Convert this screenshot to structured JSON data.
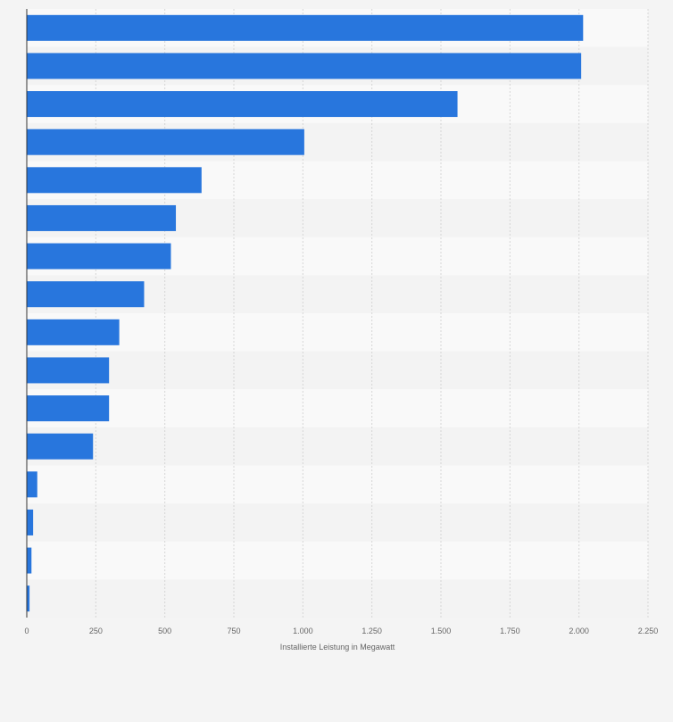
{
  "chart_data": {
    "type": "bar",
    "orientation": "horizontal",
    "xlabel": "Installierte Leistung in Megawatt",
    "ylabel": "",
    "xlim": [
      0,
      2250
    ],
    "ticks": [
      0,
      250,
      500,
      750,
      1000,
      1250,
      1500,
      1750,
      2000,
      2250
    ],
    "tick_labels": [
      "0",
      "250",
      "500",
      "750",
      "1.000",
      "1.250",
      "1.500",
      "1.750",
      "2.000",
      "2.250"
    ],
    "categories": [
      "",
      "",
      "",
      "",
      "",
      "",
      "",
      "",
      "",
      "",
      "",
      "",
      "",
      "",
      "",
      ""
    ],
    "values": [
      2015,
      2008,
      1560,
      1005,
      633,
      540,
      522,
      425,
      335,
      298,
      298,
      240,
      38,
      23,
      17,
      10
    ],
    "bar_color": "#2876dd",
    "grid": true
  }
}
